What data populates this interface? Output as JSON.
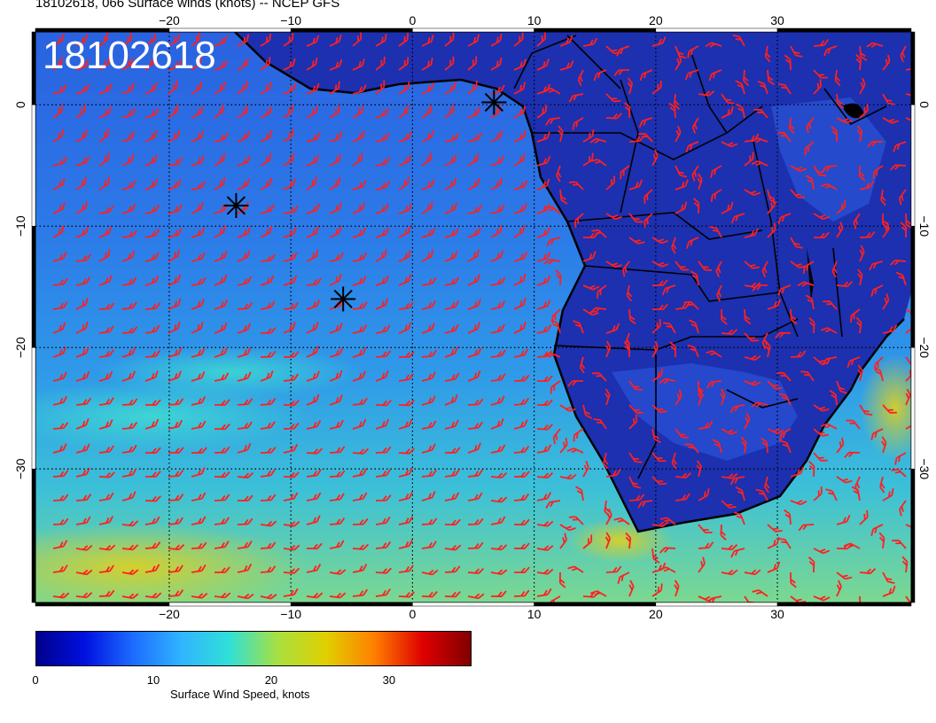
{
  "header": {
    "title": "18102618, 066 Surface winds (knots) -- NCEP GFS",
    "timestamp": "18102618"
  },
  "map": {
    "lon_range": [
      -31,
      41
    ],
    "lat_range": [
      6,
      -41
    ],
    "lon_ticks": [
      "−20",
      "−10",
      "0",
      "10",
      "20",
      "30"
    ],
    "lon_tick_values": [
      -20,
      -10,
      0,
      10,
      20,
      30
    ],
    "lat_ticks": [
      "0",
      "−10",
      "−20",
      "−30"
    ],
    "lat_tick_values": [
      0,
      -10,
      -20,
      -30
    ],
    "colors": {
      "ocean_base": "#2050d8",
      "land_base": "#1a2aa8",
      "barb": "#ff2020",
      "coastline": "#000000",
      "grid": "#000000"
    },
    "markers": [
      {
        "lon": -14.5,
        "lat": -8.3,
        "name": "star-marker-ascension"
      },
      {
        "lon": -5.7,
        "lat": -16.0,
        "name": "star-marker-st-helena"
      },
      {
        "lon": 6.7,
        "lat": 0.2,
        "name": "star-marker-sao-tome"
      }
    ]
  },
  "colorbar": {
    "label": "Surface Wind Speed, knots",
    "ticks": [
      "0",
      "10",
      "20",
      "30"
    ],
    "tick_values": [
      0,
      10,
      20,
      30
    ],
    "max": 37,
    "colors": [
      "#00008c",
      "#0010e0",
      "#1c6cff",
      "#30b4ff",
      "#30e0d8",
      "#a8e040",
      "#e0d000",
      "#ff8000",
      "#e00000",
      "#800000"
    ]
  }
}
